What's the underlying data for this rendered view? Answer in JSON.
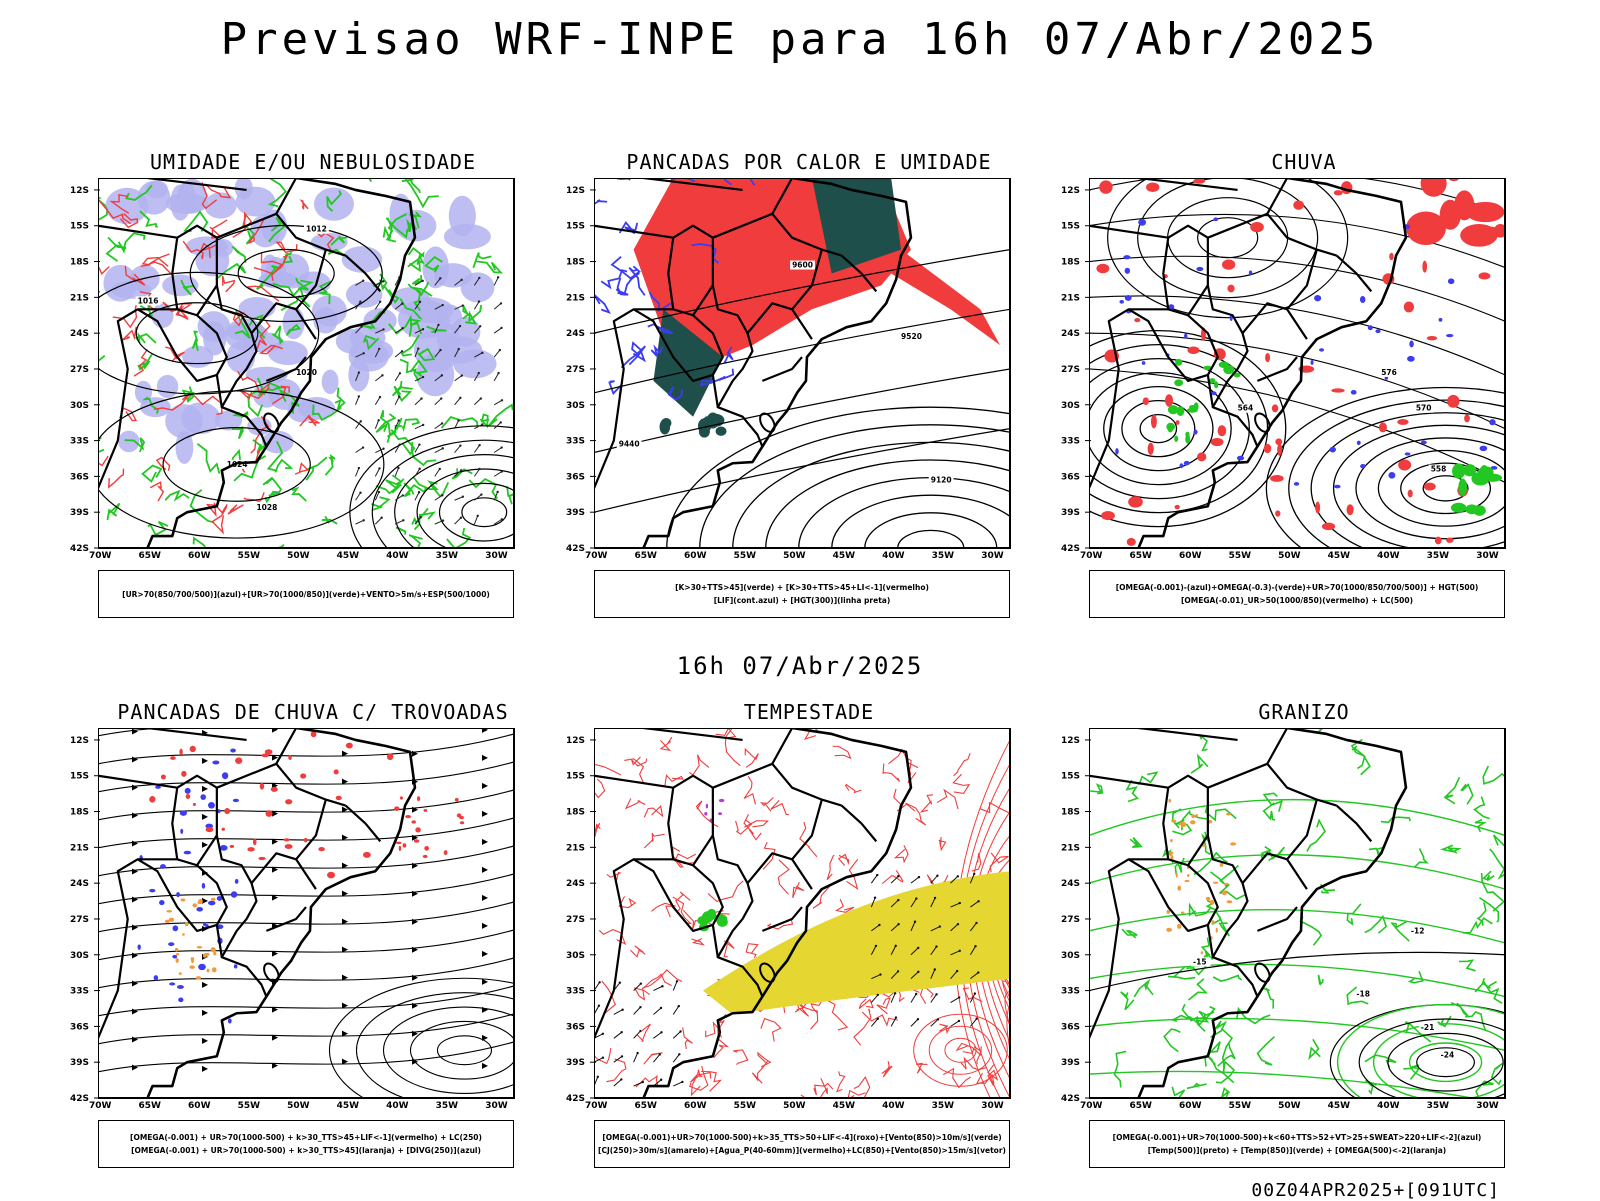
{
  "main_title": "Previsao WRF-INPE  para 16h 07/Abr/2025",
  "mid_title": "16h 07/Abr/2025",
  "footer": "00Z04APR2025+[091UTC]",
  "axes": {
    "lat_labels": [
      "12S",
      "15S",
      "18S",
      "21S",
      "24S",
      "27S",
      "30S",
      "33S",
      "36S",
      "39S",
      "42S"
    ],
    "lon_labels": [
      "70W",
      "65W",
      "60W",
      "55W",
      "50W",
      "45W",
      "40W",
      "35W",
      "30W"
    ]
  },
  "colors": {
    "lavender": "#b3b3f0",
    "green": "#22c722",
    "red": "#f03c3c",
    "dark_teal": "#1f4f4b",
    "blue": "#3c3cf0",
    "yellow": "#e6d632",
    "orange": "#f09a3c",
    "purple": "#b43cd2"
  },
  "panels": [
    {
      "id": "umidade",
      "title": "UMIDADE E/OU NEBULOSIDADE",
      "legend": [
        "[UR>70(850/700/500)](azul)+[UR>70(1000/850)](verde)+VENTO>5m/s+ESP(500/1000)"
      ],
      "contour_labels": [
        "1012",
        "1016",
        "1020",
        "1024",
        "1028"
      ]
    },
    {
      "id": "pancadas",
      "title": "PANCADAS POR CALOR E UMIDADE",
      "legend": [
        "[K>30+TTS>45](verde) + [K>30+TTS>45+LI<-1](vermelho)",
        "[LIF](cont.azul) + [HGT(300)](linha preta)"
      ],
      "contour_labels": [
        "9600",
        "9520",
        "9440",
        "9120"
      ]
    },
    {
      "id": "chuva",
      "title": "CHUVA",
      "legend": [
        "[OMEGA(-0.001)-(azul)+OMEGA(-0.3)-(verde)+UR>70(1000/850/700/500)] + HGT(500)",
        "[OMEGA(-0.01)_UR>50(1000/850)(vermelho) + LC(500)"
      ],
      "contour_labels": [
        "576",
        "570",
        "564",
        "558"
      ]
    },
    {
      "id": "trovoadas",
      "title": "PANCADAS DE CHUVA C/ TROVOADAS",
      "legend": [
        "[OMEGA(-0.001) + UR>70(1000-500) + k>30_TTS>45+LIF<-1](vermelho) + LC(250)",
        "[OMEGA(-0.001) + UR>70(1000-500) + k>30_TTS>45](laranja) + [DIVG(250)](azul)"
      ],
      "contour_labels": []
    },
    {
      "id": "tempestade",
      "title": "TEMPESTADE",
      "legend": [
        "[OMEGA(-0.001)+UR>70(1000-500)+k>35_TTS>50+LIF<-4](roxo)+[Vento(850)>10m/s](verde)",
        "[CJ(250)>30m/s](amarelo)+[Agua_P(40-60mm)](vermelho)+LC(850)+[Vento(850)>15m/s](vetor)"
      ],
      "contour_labels": []
    },
    {
      "id": "granizo",
      "title": "GRANIZO",
      "legend": [
        "[OMEGA(-0.001)+UR>70(1000-500)+k<60+TTS>52+VT>25+SWEAT>220+LIF<-2](azul)",
        "[Temp(500)](preto) + [Temp(850)](verde) + [OMEGA(500)<-2](laranja)"
      ],
      "contour_labels": [
        "-12",
        "-15",
        "-18",
        "-21",
        "-24"
      ]
    }
  ]
}
